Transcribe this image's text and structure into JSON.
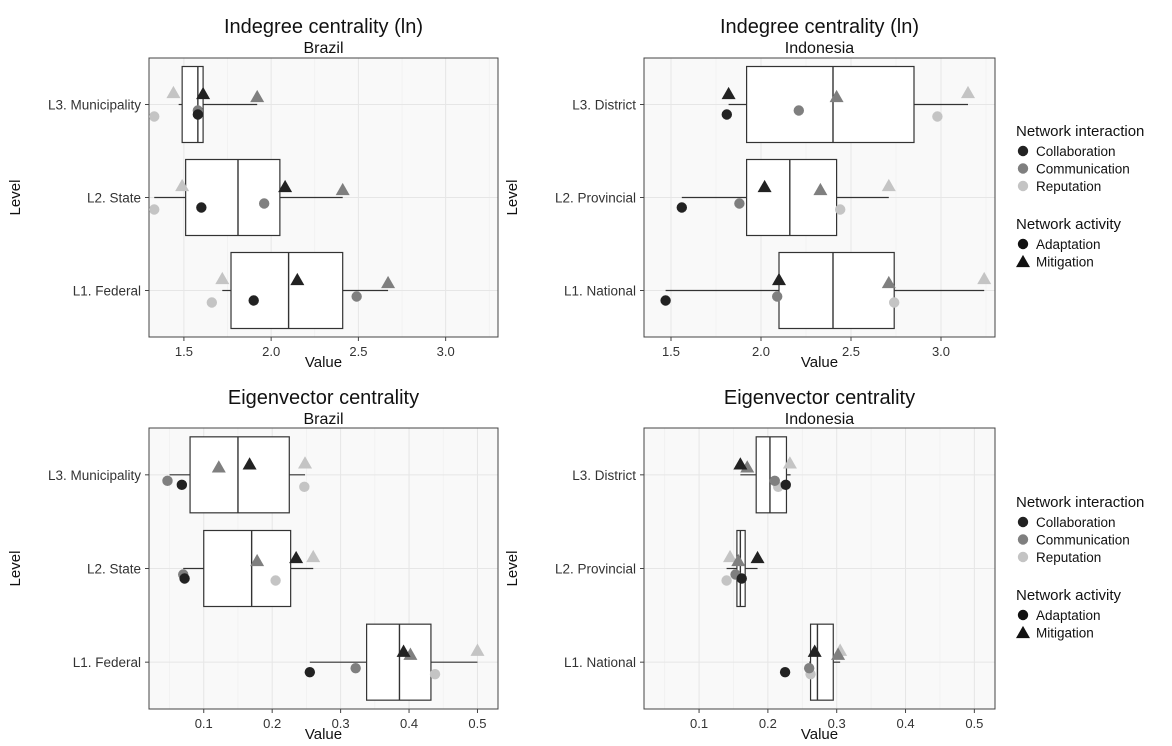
{
  "chart_data": [
    {
      "type": "boxplot",
      "title": "Indegree centrality (ln)",
      "subtitle": "Brazil",
      "xlabel": "Value",
      "ylabel": "Level",
      "xlim": [
        1.3,
        3.3
      ],
      "xticks": [
        1.5,
        2.0,
        2.5,
        3.0
      ],
      "xtick_labels": [
        "1.5",
        "2.0",
        "2.5",
        "3.0"
      ],
      "categories": [
        "L3. Municipality",
        "L2. State",
        "L1. Federal"
      ],
      "boxes": [
        {
          "category": "L3. Municipality",
          "whisker_low": 1.47,
          "q1": 1.49,
          "median": 1.58,
          "q3": 1.61,
          "whisker_high": 1.92
        },
        {
          "category": "L2. State",
          "whisker_low": 1.33,
          "q1": 1.51,
          "median": 1.81,
          "q3": 2.05,
          "whisker_high": 2.41
        },
        {
          "category": "L1. Federal",
          "whisker_low": 1.72,
          "q1": 1.77,
          "median": 2.1,
          "q3": 2.41,
          "whisker_high": 2.67
        }
      ],
      "points": [
        {
          "category": "L3. Municipality",
          "interaction": "Collaboration",
          "activity": "Adaptation",
          "value": 1.58
        },
        {
          "category": "L3. Municipality",
          "interaction": "Communication",
          "activity": "Adaptation",
          "value": 1.58
        },
        {
          "category": "L3. Municipality",
          "interaction": "Reputation",
          "activity": "Adaptation",
          "value": 1.33
        },
        {
          "category": "L3. Municipality",
          "interaction": "Collaboration",
          "activity": "Mitigation",
          "value": 1.61
        },
        {
          "category": "L3. Municipality",
          "interaction": "Communication",
          "activity": "Mitigation",
          "value": 1.92
        },
        {
          "category": "L3. Municipality",
          "interaction": "Reputation",
          "activity": "Mitigation",
          "value": 1.44
        },
        {
          "category": "L2. State",
          "interaction": "Collaboration",
          "activity": "Adaptation",
          "value": 1.6
        },
        {
          "category": "L2. State",
          "interaction": "Communication",
          "activity": "Adaptation",
          "value": 1.96
        },
        {
          "category": "L2. State",
          "interaction": "Reputation",
          "activity": "Adaptation",
          "value": 1.33
        },
        {
          "category": "L2. State",
          "interaction": "Collaboration",
          "activity": "Mitigation",
          "value": 2.08
        },
        {
          "category": "L2. State",
          "interaction": "Communication",
          "activity": "Mitigation",
          "value": 2.41
        },
        {
          "category": "L2. State",
          "interaction": "Reputation",
          "activity": "Mitigation",
          "value": 1.49
        },
        {
          "category": "L1. Federal",
          "interaction": "Collaboration",
          "activity": "Adaptation",
          "value": 1.9
        },
        {
          "category": "L1. Federal",
          "interaction": "Communication",
          "activity": "Adaptation",
          "value": 2.49
        },
        {
          "category": "L1. Federal",
          "interaction": "Reputation",
          "activity": "Adaptation",
          "value": 1.66
        },
        {
          "category": "L1. Federal",
          "interaction": "Collaboration",
          "activity": "Mitigation",
          "value": 2.15
        },
        {
          "category": "L1. Federal",
          "interaction": "Communication",
          "activity": "Mitigation",
          "value": 2.67
        },
        {
          "category": "L1. Federal",
          "interaction": "Reputation",
          "activity": "Mitigation",
          "value": 1.72
        }
      ]
    },
    {
      "type": "boxplot",
      "title": "Indegree centrality (ln)",
      "subtitle": "Indonesia",
      "xlabel": "Value",
      "ylabel": "Level",
      "xlim": [
        1.35,
        3.3
      ],
      "xticks": [
        1.5,
        2.0,
        2.5,
        3.0
      ],
      "xtick_labels": [
        "1.5",
        "2.0",
        "2.5",
        "3.0"
      ],
      "categories": [
        "L3. District",
        "L2. Provincial",
        "L1. National"
      ],
      "boxes": [
        {
          "category": "L3. District",
          "whisker_low": 1.82,
          "q1": 1.92,
          "median": 2.4,
          "q3": 2.85,
          "whisker_high": 3.15
        },
        {
          "category": "L2. Provincial",
          "whisker_low": 1.56,
          "q1": 1.92,
          "median": 2.16,
          "q3": 2.42,
          "whisker_high": 2.71
        },
        {
          "category": "L1. National",
          "whisker_low": 1.47,
          "q1": 2.1,
          "median": 2.4,
          "q3": 2.74,
          "whisker_high": 3.24
        }
      ],
      "points": [
        {
          "category": "L3. District",
          "interaction": "Collaboration",
          "activity": "Adaptation",
          "value": 1.81
        },
        {
          "category": "L3. District",
          "interaction": "Communication",
          "activity": "Adaptation",
          "value": 2.21
        },
        {
          "category": "L3. District",
          "interaction": "Reputation",
          "activity": "Adaptation",
          "value": 2.98
        },
        {
          "category": "L3. District",
          "interaction": "Collaboration",
          "activity": "Mitigation",
          "value": 1.82
        },
        {
          "category": "L3. District",
          "interaction": "Communication",
          "activity": "Mitigation",
          "value": 2.42
        },
        {
          "category": "L3. District",
          "interaction": "Reputation",
          "activity": "Mitigation",
          "value": 3.15
        },
        {
          "category": "L2. Provincial",
          "interaction": "Collaboration",
          "activity": "Adaptation",
          "value": 1.56
        },
        {
          "category": "L2. Provincial",
          "interaction": "Communication",
          "activity": "Adaptation",
          "value": 1.88
        },
        {
          "category": "L2. Provincial",
          "interaction": "Reputation",
          "activity": "Adaptation",
          "value": 2.44
        },
        {
          "category": "L2. Provincial",
          "interaction": "Collaboration",
          "activity": "Mitigation",
          "value": 2.02
        },
        {
          "category": "L2. Provincial",
          "interaction": "Communication",
          "activity": "Mitigation",
          "value": 2.33
        },
        {
          "category": "L2. Provincial",
          "interaction": "Reputation",
          "activity": "Mitigation",
          "value": 2.71
        },
        {
          "category": "L1. National",
          "interaction": "Collaboration",
          "activity": "Adaptation",
          "value": 1.47
        },
        {
          "category": "L1. National",
          "interaction": "Communication",
          "activity": "Adaptation",
          "value": 2.09
        },
        {
          "category": "L1. National",
          "interaction": "Reputation",
          "activity": "Adaptation",
          "value": 2.74
        },
        {
          "category": "L1. National",
          "interaction": "Collaboration",
          "activity": "Mitigation",
          "value": 2.1
        },
        {
          "category": "L1. National",
          "interaction": "Communication",
          "activity": "Mitigation",
          "value": 2.71
        },
        {
          "category": "L1. National",
          "interaction": "Reputation",
          "activity": "Mitigation",
          "value": 3.24
        }
      ]
    },
    {
      "type": "boxplot",
      "title": "Eigenvector centrality",
      "subtitle": "Brazil",
      "xlabel": "Value",
      "ylabel": "Level",
      "xlim": [
        0.02,
        0.53
      ],
      "xticks": [
        0.1,
        0.2,
        0.3,
        0.4,
        0.5
      ],
      "xtick_labels": [
        "0.1",
        "0.2",
        "0.3",
        "0.4",
        "0.5"
      ],
      "categories": [
        "L3. Municipality",
        "L2. State",
        "L1. Federal"
      ],
      "boxes": [
        {
          "category": "L3. Municipality",
          "whisker_low": 0.05,
          "q1": 0.08,
          "median": 0.15,
          "q3": 0.225,
          "whisker_high": 0.248
        },
        {
          "category": "L2. State",
          "whisker_low": 0.07,
          "q1": 0.1,
          "median": 0.17,
          "q3": 0.227,
          "whisker_high": 0.26
        },
        {
          "category": "L1. Federal",
          "whisker_low": 0.255,
          "q1": 0.338,
          "median": 0.386,
          "q3": 0.432,
          "whisker_high": 0.5
        }
      ],
      "points": [
        {
          "category": "L3. Municipality",
          "interaction": "Collaboration",
          "activity": "Adaptation",
          "value": 0.068
        },
        {
          "category": "L3. Municipality",
          "interaction": "Communication",
          "activity": "Adaptation",
          "value": 0.047
        },
        {
          "category": "L3. Municipality",
          "interaction": "Reputation",
          "activity": "Adaptation",
          "value": 0.247
        },
        {
          "category": "L3. Municipality",
          "interaction": "Collaboration",
          "activity": "Mitigation",
          "value": 0.167
        },
        {
          "category": "L3. Municipality",
          "interaction": "Communication",
          "activity": "Mitigation",
          "value": 0.122
        },
        {
          "category": "L3. Municipality",
          "interaction": "Reputation",
          "activity": "Mitigation",
          "value": 0.248
        },
        {
          "category": "L2. State",
          "interaction": "Collaboration",
          "activity": "Adaptation",
          "value": 0.072
        },
        {
          "category": "L2. State",
          "interaction": "Communication",
          "activity": "Adaptation",
          "value": 0.07
        },
        {
          "category": "L2. State",
          "interaction": "Reputation",
          "activity": "Adaptation",
          "value": 0.205
        },
        {
          "category": "L2. State",
          "interaction": "Collaboration",
          "activity": "Mitigation",
          "value": 0.235
        },
        {
          "category": "L2. State",
          "interaction": "Communication",
          "activity": "Mitigation",
          "value": 0.178
        },
        {
          "category": "L2. State",
          "interaction": "Reputation",
          "activity": "Mitigation",
          "value": 0.26
        },
        {
          "category": "L1. Federal",
          "interaction": "Collaboration",
          "activity": "Adaptation",
          "value": 0.255
        },
        {
          "category": "L1. Federal",
          "interaction": "Communication",
          "activity": "Adaptation",
          "value": 0.322
        },
        {
          "category": "L1. Federal",
          "interaction": "Reputation",
          "activity": "Adaptation",
          "value": 0.438
        },
        {
          "category": "L1. Federal",
          "interaction": "Collaboration",
          "activity": "Mitigation",
          "value": 0.392
        },
        {
          "category": "L1. Federal",
          "interaction": "Communication",
          "activity": "Mitigation",
          "value": 0.402
        },
        {
          "category": "L1. Federal",
          "interaction": "Reputation",
          "activity": "Mitigation",
          "value": 0.5
        }
      ]
    },
    {
      "type": "boxplot",
      "title": "Eigenvector centrality",
      "subtitle": "Indonesia",
      "xlabel": "Value",
      "ylabel": "Level",
      "xlim": [
        0.02,
        0.53
      ],
      "xticks": [
        0.1,
        0.2,
        0.3,
        0.4,
        0.5
      ],
      "xtick_labels": [
        "0.1",
        "0.2",
        "0.3",
        "0.4",
        "0.5"
      ],
      "categories": [
        "L3. District",
        "L2. Provincial",
        "L1. National"
      ],
      "boxes": [
        {
          "category": "L3. District",
          "whisker_low": 0.16,
          "q1": 0.183,
          "median": 0.203,
          "q3": 0.227,
          "whisker_high": 0.233
        },
        {
          "category": "L2. Provincial",
          "whisker_low": 0.14,
          "q1": 0.155,
          "median": 0.16,
          "q3": 0.167,
          "whisker_high": 0.185
        },
        {
          "category": "L1. National",
          "whisker_low": 0.26,
          "q1": 0.262,
          "median": 0.272,
          "q3": 0.295,
          "whisker_high": 0.305
        }
      ],
      "points": [
        {
          "category": "L3. District",
          "interaction": "Collaboration",
          "activity": "Adaptation",
          "value": 0.226
        },
        {
          "category": "L3. District",
          "interaction": "Communication",
          "activity": "Adaptation",
          "value": 0.21
        },
        {
          "category": "L3. District",
          "interaction": "Reputation",
          "activity": "Adaptation",
          "value": 0.215
        },
        {
          "category": "L3. District",
          "interaction": "Collaboration",
          "activity": "Mitigation",
          "value": 0.16
        },
        {
          "category": "L3. District",
          "interaction": "Communication",
          "activity": "Mitigation",
          "value": 0.17
        },
        {
          "category": "L3. District",
          "interaction": "Reputation",
          "activity": "Mitigation",
          "value": 0.232
        },
        {
          "category": "L2. Provincial",
          "interaction": "Collaboration",
          "activity": "Adaptation",
          "value": 0.162
        },
        {
          "category": "L2. Provincial",
          "interaction": "Communication",
          "activity": "Adaptation",
          "value": 0.153
        },
        {
          "category": "L2. Provincial",
          "interaction": "Reputation",
          "activity": "Adaptation",
          "value": 0.14
        },
        {
          "category": "L2. Provincial",
          "interaction": "Collaboration",
          "activity": "Mitigation",
          "value": 0.185
        },
        {
          "category": "L2. Provincial",
          "interaction": "Communication",
          "activity": "Mitigation",
          "value": 0.157
        },
        {
          "category": "L2. Provincial",
          "interaction": "Reputation",
          "activity": "Mitigation",
          "value": 0.145
        },
        {
          "category": "L1. National",
          "interaction": "Collaboration",
          "activity": "Adaptation",
          "value": 0.225
        },
        {
          "category": "L1. National",
          "interaction": "Communication",
          "activity": "Adaptation",
          "value": 0.26
        },
        {
          "category": "L1. National",
          "interaction": "Reputation",
          "activity": "Adaptation",
          "value": 0.262
        },
        {
          "category": "L1. National",
          "interaction": "Collaboration",
          "activity": "Mitigation",
          "value": 0.268
        },
        {
          "category": "L1. National",
          "interaction": "Communication",
          "activity": "Mitigation",
          "value": 0.302
        },
        {
          "category": "L1. National",
          "interaction": "Reputation",
          "activity": "Mitigation",
          "value": 0.305
        }
      ]
    }
  ],
  "legend": {
    "interaction_title": "Network interaction",
    "interaction_items": [
      {
        "label": "Collaboration",
        "color": "#222222"
      },
      {
        "label": "Communication",
        "color": "#7f7f7f"
      },
      {
        "label": "Reputation",
        "color": "#c4c4c4"
      }
    ],
    "activity_title": "Network activity",
    "activity_items": [
      {
        "label": "Adaptation",
        "shape": "circle"
      },
      {
        "label": "Mitigation",
        "shape": "triangle"
      }
    ]
  }
}
